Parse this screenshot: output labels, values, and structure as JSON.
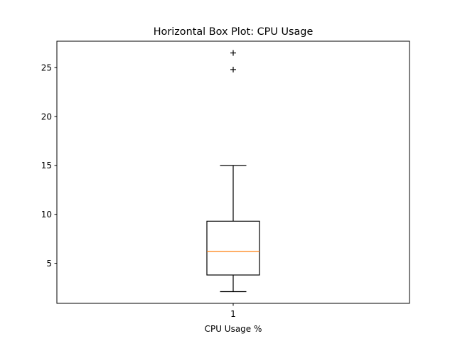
{
  "chart_data": {
    "type": "box",
    "title": "Horizontal Box Plot: CPU Usage",
    "xlabel": "CPU Usage %",
    "ylabel": "",
    "categories": [
      "1"
    ],
    "ylim": [
      0.9,
      27.7
    ],
    "yticks": [
      5,
      10,
      15,
      20,
      25
    ],
    "grid": false,
    "series": [
      {
        "whisker_low": 2.1,
        "q1": 3.8,
        "median": 6.2,
        "q3": 9.3,
        "whisker_high": 15.0,
        "outliers": [
          24.8,
          26.5
        ]
      }
    ],
    "colors": {
      "box": "#000000",
      "median": "#ff7f0e",
      "outlier": "#000000"
    }
  }
}
